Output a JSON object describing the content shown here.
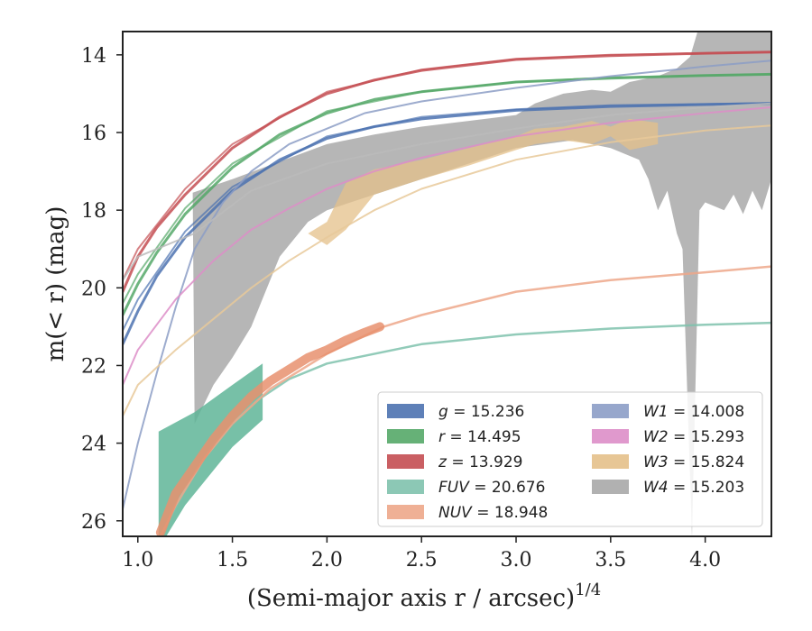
{
  "chart_data": {
    "type": "line",
    "xlabel": "(Semi-major axis r / arcsec)",
    "xlabel_sup": "1/4",
    "ylabel": "m(< r) (mag)",
    "xlim": [
      0.92,
      4.35
    ],
    "ylim": [
      26.4,
      13.4
    ],
    "y_inverted": true,
    "xticks": [
      1.0,
      1.5,
      2.0,
      2.5,
      3.0,
      3.5,
      4.0
    ],
    "xtick_labels": [
      "1.0",
      "1.5",
      "2.0",
      "2.5",
      "3.0",
      "3.5",
      "4.0"
    ],
    "yticks": [
      14,
      16,
      18,
      20,
      22,
      24,
      26
    ],
    "ytick_labels": [
      "14",
      "16",
      "18",
      "20",
      "22",
      "24",
      "26"
    ],
    "grid": false,
    "legend_position": "lower-right",
    "legend": [
      {
        "band": "g",
        "value": "15.236"
      },
      {
        "band": "W1",
        "value": "14.008"
      },
      {
        "band": "r",
        "value": "14.495"
      },
      {
        "band": "W2",
        "value": "15.293"
      },
      {
        "band": "z",
        "value": "13.929"
      },
      {
        "band": "W3",
        "value": "15.824"
      },
      {
        "band": "FUV",
        "value": "20.676"
      },
      {
        "band": "W4",
        "value": "15.203"
      },
      {
        "band": "NUV",
        "value": "18.948"
      }
    ],
    "series": [
      {
        "name": "g",
        "color": "#4c72b0",
        "width": 3,
        "points": [
          [
            0.92,
            21.45
          ],
          [
            1.0,
            20.6
          ],
          [
            1.1,
            19.7
          ],
          [
            1.25,
            18.7
          ],
          [
            1.5,
            17.5
          ],
          [
            1.75,
            16.7
          ],
          [
            2.0,
            16.15
          ],
          [
            2.25,
            15.85
          ],
          [
            2.5,
            15.65
          ],
          [
            3.0,
            15.43
          ],
          [
            3.5,
            15.33
          ],
          [
            4.0,
            15.28
          ],
          [
            4.35,
            15.25
          ]
        ],
        "model": [
          [
            0.92,
            21.1
          ],
          [
            1.0,
            20.3
          ],
          [
            1.25,
            18.55
          ],
          [
            1.5,
            17.4
          ],
          [
            2.0,
            16.1
          ],
          [
            2.5,
            15.6
          ],
          [
            3.0,
            15.4
          ],
          [
            3.5,
            15.3
          ],
          [
            4.35,
            15.24
          ]
        ]
      },
      {
        "name": "r",
        "color": "#55a868",
        "width": 3,
        "points": [
          [
            0.92,
            20.7
          ],
          [
            1.0,
            19.9
          ],
          [
            1.1,
            19.1
          ],
          [
            1.25,
            18.1
          ],
          [
            1.5,
            16.9
          ],
          [
            1.75,
            16.05
          ],
          [
            2.0,
            15.5
          ],
          [
            2.25,
            15.15
          ],
          [
            2.5,
            14.95
          ],
          [
            3.0,
            14.7
          ],
          [
            3.5,
            14.6
          ],
          [
            4.0,
            14.53
          ],
          [
            4.35,
            14.5
          ]
        ],
        "model": [
          [
            0.92,
            20.4
          ],
          [
            1.0,
            19.65
          ],
          [
            1.25,
            17.95
          ],
          [
            1.5,
            16.8
          ],
          [
            2.0,
            15.45
          ],
          [
            2.5,
            14.95
          ],
          [
            3.0,
            14.7
          ],
          [
            3.5,
            14.58
          ],
          [
            4.35,
            14.5
          ]
        ]
      },
      {
        "name": "z",
        "color": "#c44e52",
        "width": 3,
        "points": [
          [
            0.92,
            20.1
          ],
          [
            1.0,
            19.2
          ],
          [
            1.1,
            18.45
          ],
          [
            1.25,
            17.6
          ],
          [
            1.5,
            16.4
          ],
          [
            1.75,
            15.6
          ],
          [
            2.0,
            15.0
          ],
          [
            2.25,
            14.65
          ],
          [
            2.5,
            14.4
          ],
          [
            3.0,
            14.12
          ],
          [
            3.5,
            14.02
          ],
          [
            4.0,
            13.96
          ],
          [
            4.35,
            13.93
          ]
        ],
        "model": [
          [
            0.92,
            19.8
          ],
          [
            1.0,
            19.0
          ],
          [
            1.25,
            17.45
          ],
          [
            1.5,
            16.3
          ],
          [
            2.0,
            14.95
          ],
          [
            2.5,
            14.38
          ],
          [
            3.0,
            14.1
          ],
          [
            3.5,
            14.0
          ],
          [
            4.35,
            13.93
          ]
        ]
      },
      {
        "name": "W1",
        "color": "#8c9dc6",
        "width": 2,
        "points": [
          [
            0.92,
            25.7
          ],
          [
            1.0,
            24.0
          ],
          [
            1.1,
            22.2
          ],
          [
            1.2,
            20.5
          ],
          [
            1.3,
            19.0
          ],
          [
            1.45,
            17.8
          ],
          [
            1.6,
            17.0
          ],
          [
            1.8,
            16.3
          ],
          [
            2.0,
            15.9
          ],
          [
            2.2,
            15.5
          ],
          [
            2.5,
            15.2
          ],
          [
            3.0,
            14.85
          ],
          [
            3.5,
            14.55
          ],
          [
            4.0,
            14.3
          ],
          [
            4.35,
            14.15
          ]
        ]
      },
      {
        "name": "W2",
        "color": "#dd8ec8",
        "width": 2,
        "points": [
          [
            0.92,
            22.5
          ],
          [
            1.0,
            21.6
          ],
          [
            1.2,
            20.3
          ],
          [
            1.4,
            19.3
          ],
          [
            1.6,
            18.5
          ],
          [
            1.8,
            17.95
          ],
          [
            2.0,
            17.45
          ],
          [
            2.25,
            17.0
          ],
          [
            2.5,
            16.65
          ],
          [
            3.0,
            16.1
          ],
          [
            3.5,
            15.75
          ],
          [
            4.0,
            15.5
          ],
          [
            4.35,
            15.35
          ]
        ]
      },
      {
        "name": "W4-line",
        "color": "#bbbbbb",
        "width": 2,
        "points": [
          [
            0.92,
            19.8
          ],
          [
            1.0,
            19.2
          ],
          [
            1.3,
            18.6
          ],
          [
            1.6,
            17.5
          ],
          [
            2.0,
            16.8
          ],
          [
            2.5,
            16.3
          ],
          [
            3.0,
            15.9
          ],
          [
            3.5,
            15.55
          ],
          [
            4.0,
            15.35
          ],
          [
            4.35,
            15.25
          ]
        ]
      },
      {
        "name": "W3-line",
        "color": "#e8c99a",
        "width": 2,
        "points": [
          [
            0.92,
            23.3
          ],
          [
            1.0,
            22.5
          ],
          [
            1.2,
            21.6
          ],
          [
            1.4,
            20.8
          ],
          [
            1.6,
            20.0
          ],
          [
            1.8,
            19.3
          ],
          [
            2.0,
            18.7
          ],
          [
            2.25,
            18.0
          ],
          [
            2.5,
            17.45
          ],
          [
            3.0,
            16.7
          ],
          [
            3.5,
            16.25
          ],
          [
            4.0,
            15.95
          ],
          [
            4.35,
            15.82
          ]
        ]
      },
      {
        "name": "FUV",
        "color": "#7fc2ad",
        "width": 2.5,
        "points": [
          [
            1.12,
            26.4
          ],
          [
            1.25,
            25.2
          ],
          [
            1.4,
            24.0
          ],
          [
            1.6,
            23.0
          ],
          [
            1.8,
            22.35
          ],
          [
            2.0,
            21.95
          ],
          [
            2.5,
            21.45
          ],
          [
            3.0,
            21.2
          ],
          [
            3.5,
            21.05
          ],
          [
            4.0,
            20.95
          ],
          [
            4.35,
            20.9
          ]
        ]
      },
      {
        "name": "NUV",
        "color": "#eda789",
        "width": 2.5,
        "points": [
          [
            1.12,
            26.4
          ],
          [
            1.2,
            25.6
          ],
          [
            1.35,
            24.4
          ],
          [
            1.5,
            23.5
          ],
          [
            1.7,
            22.6
          ],
          [
            2.0,
            21.7
          ],
          [
            2.3,
            21.0
          ],
          [
            2.5,
            20.7
          ],
          [
            3.0,
            20.1
          ],
          [
            3.5,
            19.8
          ],
          [
            4.0,
            19.6
          ],
          [
            4.35,
            19.45
          ]
        ]
      },
      {
        "name": "NUV-data",
        "color": "#e8916e",
        "width": 10,
        "points": [
          [
            1.12,
            26.3
          ],
          [
            1.2,
            25.3
          ],
          [
            1.3,
            24.6
          ],
          [
            1.4,
            23.9
          ],
          [
            1.5,
            23.3
          ],
          [
            1.6,
            22.8
          ],
          [
            1.7,
            22.4
          ],
          [
            1.8,
            22.1
          ],
          [
            1.9,
            21.8
          ],
          [
            2.0,
            21.6
          ],
          [
            2.1,
            21.35
          ],
          [
            2.2,
            21.15
          ],
          [
            2.28,
            21.0
          ]
        ]
      }
    ],
    "bands": [
      {
        "name": "W4",
        "color": "#a9a9a9",
        "opacity": 0.85,
        "upper": [
          [
            1.29,
            17.55
          ],
          [
            1.5,
            17.2
          ],
          [
            1.75,
            16.75
          ],
          [
            2.0,
            16.3
          ],
          [
            2.25,
            16.05
          ],
          [
            2.5,
            15.85
          ],
          [
            2.75,
            15.7
          ],
          [
            3.0,
            15.55
          ],
          [
            3.1,
            15.25
          ],
          [
            3.25,
            15.0
          ],
          [
            3.4,
            14.9
          ],
          [
            3.5,
            14.95
          ],
          [
            3.6,
            14.7
          ],
          [
            3.75,
            14.55
          ],
          [
            3.85,
            14.35
          ],
          [
            3.92,
            14.05
          ],
          [
            3.96,
            13.4
          ],
          [
            4.35,
            13.4
          ]
        ],
        "lower": [
          [
            4.35,
            17.2
          ],
          [
            4.3,
            18.0
          ],
          [
            4.25,
            17.5
          ],
          [
            4.2,
            18.1
          ],
          [
            4.15,
            17.6
          ],
          [
            4.1,
            18.0
          ],
          [
            4.0,
            17.8
          ],
          [
            3.97,
            18.0
          ],
          [
            3.93,
            26.4
          ],
          [
            3.88,
            19.0
          ],
          [
            3.85,
            18.6
          ],
          [
            3.8,
            17.5
          ],
          [
            3.75,
            18.0
          ],
          [
            3.7,
            17.2
          ],
          [
            3.65,
            16.7
          ],
          [
            3.5,
            16.4
          ],
          [
            3.3,
            16.2
          ],
          [
            3.0,
            16.4
          ],
          [
            2.75,
            16.8
          ],
          [
            2.5,
            17.2
          ],
          [
            2.25,
            17.6
          ],
          [
            2.0,
            18.0
          ],
          [
            1.9,
            18.3
          ],
          [
            1.75,
            19.2
          ],
          [
            1.6,
            21.0
          ],
          [
            1.5,
            21.8
          ],
          [
            1.4,
            22.5
          ],
          [
            1.3,
            23.5
          ]
        ]
      },
      {
        "name": "W3",
        "color": "#e4c08a",
        "opacity": 0.75,
        "upper": [
          [
            1.9,
            18.6
          ],
          [
            2.0,
            18.3
          ],
          [
            2.1,
            17.3
          ],
          [
            2.25,
            16.95
          ],
          [
            2.5,
            16.7
          ],
          [
            2.75,
            16.4
          ],
          [
            3.0,
            16.1
          ],
          [
            3.1,
            15.9
          ],
          [
            3.25,
            15.85
          ],
          [
            3.4,
            15.7
          ],
          [
            3.5,
            15.85
          ],
          [
            3.6,
            15.65
          ],
          [
            3.75,
            15.75
          ]
        ],
        "lower": [
          [
            3.75,
            16.3
          ],
          [
            3.6,
            16.45
          ],
          [
            3.5,
            16.1
          ],
          [
            3.4,
            16.3
          ],
          [
            3.25,
            16.2
          ],
          [
            3.1,
            16.3
          ],
          [
            3.0,
            16.45
          ],
          [
            2.75,
            16.85
          ],
          [
            2.5,
            17.2
          ],
          [
            2.25,
            17.6
          ],
          [
            2.1,
            18.5
          ],
          [
            2.0,
            18.9
          ]
        ]
      },
      {
        "name": "FUV",
        "color": "#5fb598",
        "opacity": 0.85,
        "upper": [
          [
            1.11,
            23.7
          ],
          [
            1.3,
            23.2
          ],
          [
            1.5,
            22.5
          ],
          [
            1.66,
            21.95
          ]
        ],
        "lower": [
          [
            1.66,
            23.4
          ],
          [
            1.5,
            24.1
          ],
          [
            1.35,
            25.0
          ],
          [
            1.25,
            25.6
          ],
          [
            1.15,
            26.4
          ],
          [
            1.11,
            26.4
          ]
        ]
      }
    ]
  }
}
